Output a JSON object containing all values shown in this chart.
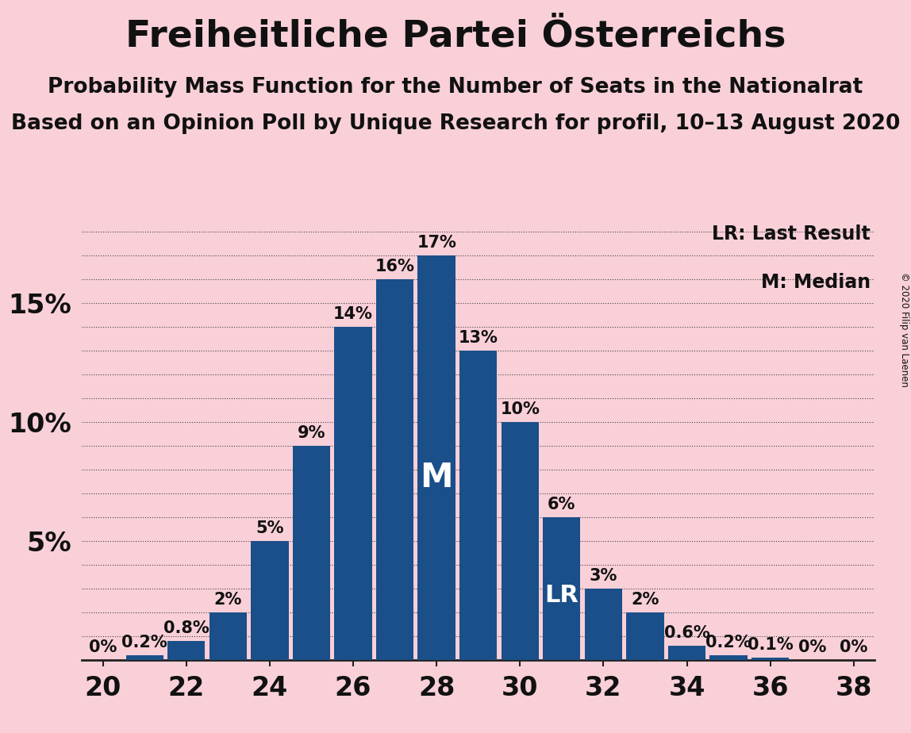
{
  "title": "Freiheitliche Partei Österreichs",
  "subtitle1": "Probability Mass Function for the Number of Seats in the Nationalrat",
  "subtitle2": "Based on an Opinion Poll by Unique Research for profil, 10–13 August 2020",
  "copyright": "© 2020 Filip van Laenen",
  "legend_lr": "LR: Last Result",
  "legend_m": "M: Median",
  "background_color": "#f9d0d8",
  "bar_color": "#1a4f8a",
  "seats": [
    20,
    21,
    22,
    23,
    24,
    25,
    26,
    27,
    28,
    29,
    30,
    31,
    32,
    33,
    34,
    35,
    36,
    37,
    38
  ],
  "probabilities": [
    0.0,
    0.2,
    0.8,
    2.0,
    5.0,
    9.0,
    14.0,
    16.0,
    17.0,
    13.0,
    10.0,
    6.0,
    3.0,
    2.0,
    0.6,
    0.2,
    0.1,
    0.0,
    0.0
  ],
  "prob_labels": [
    "0%",
    "0.2%",
    "0.8%",
    "2%",
    "5%",
    "9%",
    "14%",
    "16%",
    "17%",
    "13%",
    "10%",
    "6%",
    "3%",
    "2%",
    "0.6%",
    "0.2%",
    "0.1%",
    "0%",
    "0%"
  ],
  "median_seat": 28,
  "lr_seat": 31,
  "ylim": [
    0,
    18.5
  ],
  "yticks": [
    5,
    10,
    15
  ],
  "ytick_labels": [
    "5%",
    "10%",
    "15%"
  ],
  "xticks": [
    20,
    22,
    24,
    26,
    28,
    30,
    32,
    34,
    36,
    38
  ],
  "title_fontsize": 34,
  "subtitle_fontsize": 19,
  "tick_fontsize": 24,
  "annotation_fontsize": 15,
  "bar_width": 0.9
}
